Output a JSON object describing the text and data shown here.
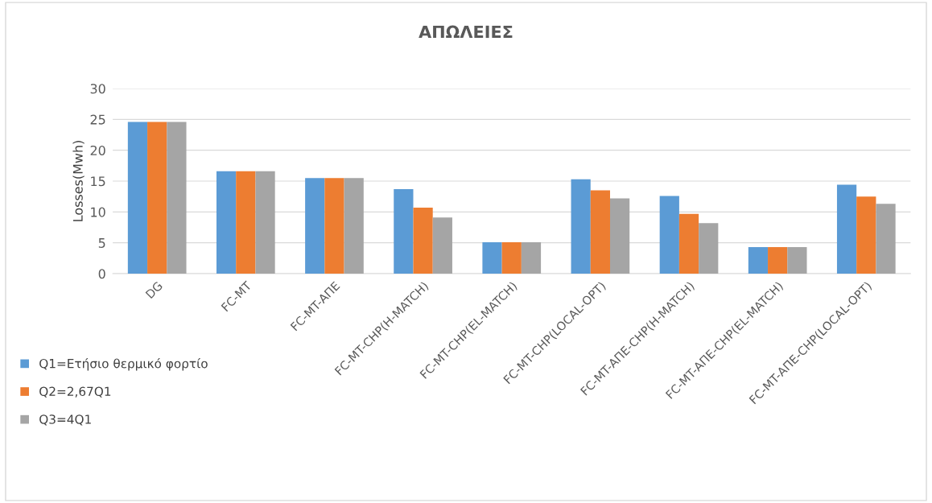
{
  "chart_data": {
    "type": "bar",
    "title": "ΑΠΩΛΕΙΕΣ",
    "ylabel": "Losses(Mwh)",
    "categories": [
      "DG",
      "FC-MT",
      "FC-MT-ΑΠΕ",
      "FC-MT-CHP(H-MATCH)",
      "FC-MT-CHP(EL-MATCH)",
      "FC-MT-CHP(LOCAL-OPT)",
      "FC-MT-ΑΠΕ-CHP(H-MATCH)",
      "FC-MT-ΑΠΕ-CHP(EL-MATCH)",
      "FC-MT-ΑΠΕ-CHP(LOCAL-OPT)"
    ],
    "series": [
      {
        "name": "Q1=Ετήσιο θερμικό φορτίο",
        "color": "#5b9bd5",
        "values": [
          24.6,
          16.6,
          15.5,
          13.7,
          5.1,
          15.3,
          12.6,
          4.3,
          14.4
        ]
      },
      {
        "name": "Q2=2,67Q1",
        "color": "#ed7d31",
        "values": [
          24.6,
          16.6,
          15.5,
          10.7,
          5.1,
          13.5,
          9.7,
          4.3,
          12.5
        ]
      },
      {
        "name": "Q3=4Q1",
        "color": "#a5a5a5",
        "values": [
          24.6,
          16.6,
          15.5,
          9.1,
          5.1,
          12.2,
          8.2,
          4.3,
          11.3
        ]
      }
    ],
    "ylim": [
      0,
      30
    ],
    "yticks": [
      0,
      5,
      10,
      15,
      20,
      25,
      30
    ],
    "grid": "y",
    "legend": "bottom left"
  }
}
